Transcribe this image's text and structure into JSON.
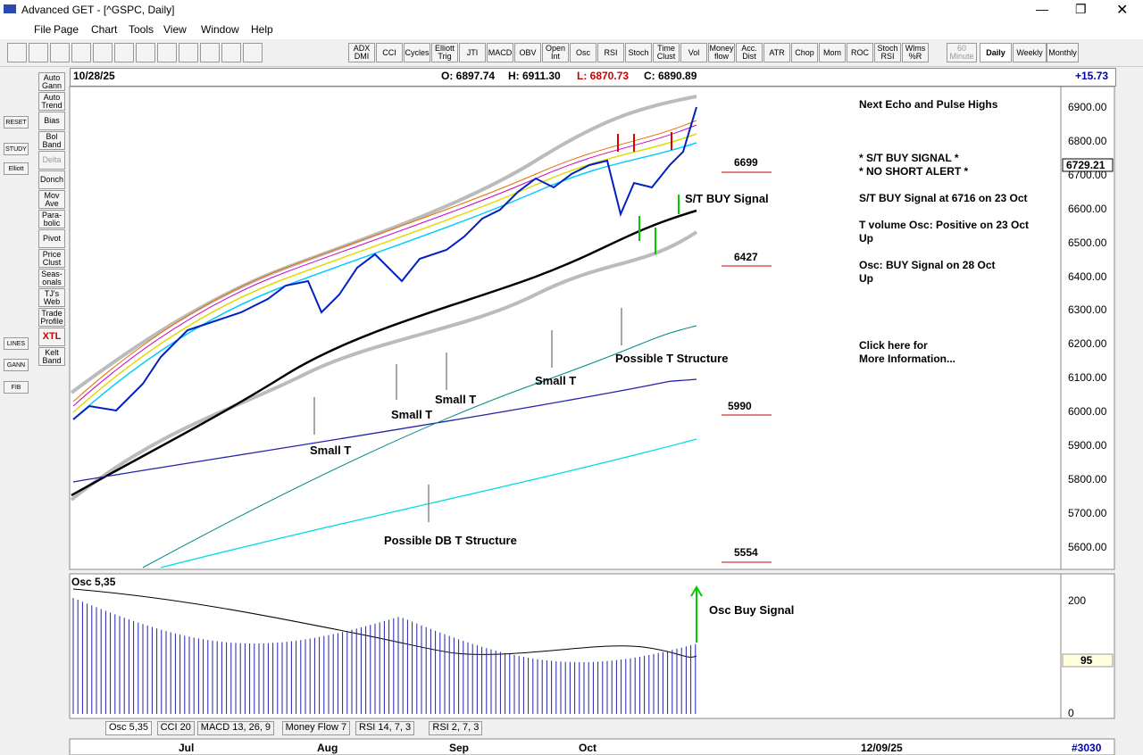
{
  "window": {
    "title": "Advanced GET - [^GSPC, Daily]"
  },
  "menu": [
    "File",
    "Page",
    "Chart",
    "Tools",
    "View",
    "Window",
    "Help"
  ],
  "toolbar": [
    "ADX DMI",
    "CCI",
    "Cycles",
    "Elliott Trig",
    "JTI",
    "MACD",
    "OBV",
    "Open Int",
    "Osc",
    "RSI",
    "Stoch",
    "Time Clust",
    "Vol",
    "Money flow",
    "Acc. Dist",
    "ATR",
    "Chop",
    "Mom",
    "ROC",
    "Stoch RSI",
    "Wlms %R"
  ],
  "timeframes": [
    "60 Minute",
    "Daily",
    "Weekly",
    "Monthly"
  ],
  "left_tools": [
    "Auto Gann",
    "Auto Trend",
    "Bias",
    "Bol Band",
    "Delta",
    "Donch",
    "Mov Ave",
    "Para-bolic",
    "Pivot",
    "Price Clust",
    "Seas-onals",
    "TJ's Web",
    "Trade Profile",
    "XTL",
    "Kelt Band"
  ],
  "left_icons": [
    "RESET",
    "STUDY",
    "Elliott",
    "LINES",
    "GANN",
    "FIB"
  ],
  "header": {
    "date": "10/28/25",
    "open": "O: 6897.74",
    "high": "H: 6911.30",
    "low": "L: 6870.73",
    "close": "C: 6890.89",
    "change": "+15.73"
  },
  "price_axis": [
    "6900.00",
    "6800.00",
    "6700.00",
    "6600.00",
    "6500.00",
    "6400.00",
    "6300.00",
    "6200.00",
    "6100.00",
    "6000.00",
    "5900.00",
    "5800.00",
    "5700.00",
    "5600.00"
  ],
  "last_price": "6729.21",
  "levels": [
    "6699",
    "6427",
    "5990",
    "5554"
  ],
  "annotations": [
    "S/T BUY Signal",
    "Possible T Structure",
    "Small T",
    "Small T",
    "Small T",
    "Small T",
    "Possible DB T Structure"
  ],
  "info_panel": [
    "Next Echo and Pulse Highs",
    "* S/T BUY SIGNAL *",
    "* NO SHORT ALERT *",
    "S/T BUY Signal at 6716 on 23 Oct",
    "T volume Osc: Positive on 23 Oct",
    "Up",
    "Osc: BUY Signal on 28 Oct",
    "Up",
    "Click here for",
    "More Information..."
  ],
  "osc": {
    "title": "Osc 5,35",
    "axis": [
      "200",
      "0"
    ],
    "value": "95",
    "signal": "Osc Buy Signal"
  },
  "tabs": [
    "Osc 5,35",
    "CCI 20",
    "MACD 13, 26, 9",
    "Money Flow 7",
    "RSI 14, 7, 3",
    "RSI 2, 7, 3"
  ],
  "date_axis": [
    "Jul",
    "Aug",
    "Sep",
    "Oct"
  ],
  "end_date": "12/09/25",
  "record": "#3030"
}
